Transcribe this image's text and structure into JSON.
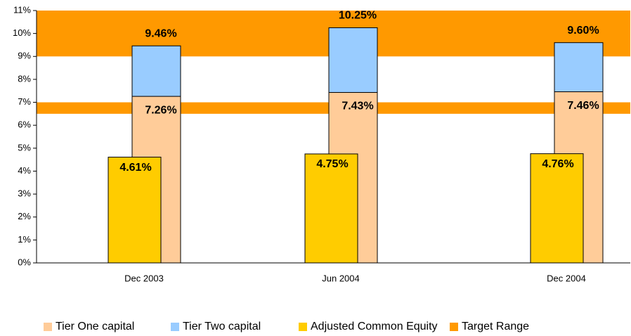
{
  "chart_data": {
    "type": "bar",
    "categories": [
      "Dec 2003",
      "Jun 2004",
      "Dec 2004"
    ],
    "series": [
      {
        "name": "Tier One capital",
        "color": "#ffcc99",
        "stack": "tier",
        "values": [
          7.26,
          7.43,
          7.46
        ],
        "value_labels": [
          "7.26%",
          "7.43%",
          "7.46%"
        ]
      },
      {
        "name": "Tier Two capital",
        "color": "#99ccff",
        "stack": "tier",
        "values": [
          2.2,
          2.82,
          2.14
        ]
      },
      {
        "name": "Adjusted Common Equity",
        "color": "#ffcc00",
        "values": [
          4.61,
          4.75,
          4.76
        ],
        "value_labels": [
          "4.61%",
          "4.75%",
          "4.76%"
        ]
      }
    ],
    "totals": [
      9.46,
      10.25,
      9.6
    ],
    "total_labels": [
      "9.46%",
      "10.25%",
      "9.60%"
    ],
    "target_range": {
      "name": "Target Range",
      "color": "#ff9900",
      "bands": [
        [
          6.5,
          7
        ],
        [
          9,
          11
        ]
      ]
    },
    "ylim": [
      0,
      11
    ],
    "yticks": [
      {
        "value": 0,
        "label": "0%"
      },
      {
        "value": 1,
        "label": "1%"
      },
      {
        "value": 2,
        "label": "2%"
      },
      {
        "value": 3,
        "label": "3%"
      },
      {
        "value": 4,
        "label": "4%"
      },
      {
        "value": 5,
        "label": "5%"
      },
      {
        "value": 6,
        "label": "6%"
      },
      {
        "value": 7,
        "label": "7%"
      },
      {
        "value": 8,
        "label": "8%"
      },
      {
        "value": 9,
        "label": "9%"
      },
      {
        "value": 10,
        "label": "10%"
      },
      {
        "value": 11,
        "label": "11%"
      }
    ],
    "legend": "bottom"
  }
}
